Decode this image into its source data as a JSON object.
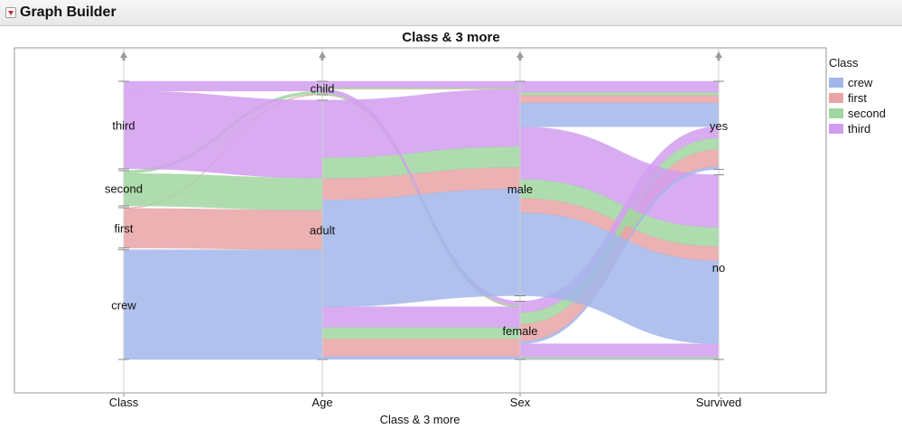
{
  "window": {
    "title": "Graph Builder"
  },
  "chart_data": {
    "type": "parallel-sets",
    "title": "Class & 3 more",
    "xlabel": "Class & 3 more",
    "axes": [
      {
        "name": "Class",
        "levels": [
          "third",
          "second",
          "first",
          "crew"
        ]
      },
      {
        "name": "Age",
        "levels": [
          "child",
          "adult"
        ]
      },
      {
        "name": "Sex",
        "levels": [
          "male",
          "female"
        ]
      },
      {
        "name": "Survived",
        "levels": [
          "yes",
          "no"
        ]
      }
    ],
    "color_variable": "Class",
    "legend": {
      "title": "Class",
      "position": "right",
      "items": [
        {
          "label": "crew",
          "color": "#a2b6ea"
        },
        {
          "label": "first",
          "color": "#e8a3a6"
        },
        {
          "label": "second",
          "color": "#a0d6a0"
        },
        {
          "label": "third",
          "color": "#d29df0"
        }
      ]
    },
    "records": [
      {
        "Class": "first",
        "Age": "child",
        "Sex": "male",
        "Survived": "yes",
        "count": 5
      },
      {
        "Class": "first",
        "Age": "child",
        "Sex": "female",
        "Survived": "yes",
        "count": 1
      },
      {
        "Class": "first",
        "Age": "adult",
        "Sex": "male",
        "Survived": "no",
        "count": 118
      },
      {
        "Class": "first",
        "Age": "adult",
        "Sex": "male",
        "Survived": "yes",
        "count": 57
      },
      {
        "Class": "first",
        "Age": "adult",
        "Sex": "female",
        "Survived": "no",
        "count": 4
      },
      {
        "Class": "first",
        "Age": "adult",
        "Sex": "female",
        "Survived": "yes",
        "count": 140
      },
      {
        "Class": "second",
        "Age": "child",
        "Sex": "male",
        "Survived": "yes",
        "count": 11
      },
      {
        "Class": "second",
        "Age": "child",
        "Sex": "female",
        "Survived": "yes",
        "count": 13
      },
      {
        "Class": "second",
        "Age": "adult",
        "Sex": "male",
        "Survived": "no",
        "count": 154
      },
      {
        "Class": "second",
        "Age": "adult",
        "Sex": "male",
        "Survived": "yes",
        "count": 14
      },
      {
        "Class": "second",
        "Age": "adult",
        "Sex": "female",
        "Survived": "no",
        "count": 13
      },
      {
        "Class": "second",
        "Age": "adult",
        "Sex": "female",
        "Survived": "yes",
        "count": 80
      },
      {
        "Class": "third",
        "Age": "child",
        "Sex": "male",
        "Survived": "no",
        "count": 35
      },
      {
        "Class": "third",
        "Age": "child",
        "Sex": "male",
        "Survived": "yes",
        "count": 13
      },
      {
        "Class": "third",
        "Age": "child",
        "Sex": "female",
        "Survived": "no",
        "count": 17
      },
      {
        "Class": "third",
        "Age": "child",
        "Sex": "female",
        "Survived": "yes",
        "count": 14
      },
      {
        "Class": "third",
        "Age": "adult",
        "Sex": "male",
        "Survived": "no",
        "count": 387
      },
      {
        "Class": "third",
        "Age": "adult",
        "Sex": "male",
        "Survived": "yes",
        "count": 75
      },
      {
        "Class": "third",
        "Age": "adult",
        "Sex": "female",
        "Survived": "no",
        "count": 89
      },
      {
        "Class": "third",
        "Age": "adult",
        "Sex": "female",
        "Survived": "yes",
        "count": 76
      },
      {
        "Class": "crew",
        "Age": "adult",
        "Sex": "male",
        "Survived": "no",
        "count": 670
      },
      {
        "Class": "crew",
        "Age": "adult",
        "Sex": "male",
        "Survived": "yes",
        "count": 192
      },
      {
        "Class": "crew",
        "Age": "adult",
        "Sex": "female",
        "Survived": "no",
        "count": 3
      },
      {
        "Class": "crew",
        "Age": "adult",
        "Sex": "female",
        "Survived": "yes",
        "count": 20
      }
    ]
  }
}
